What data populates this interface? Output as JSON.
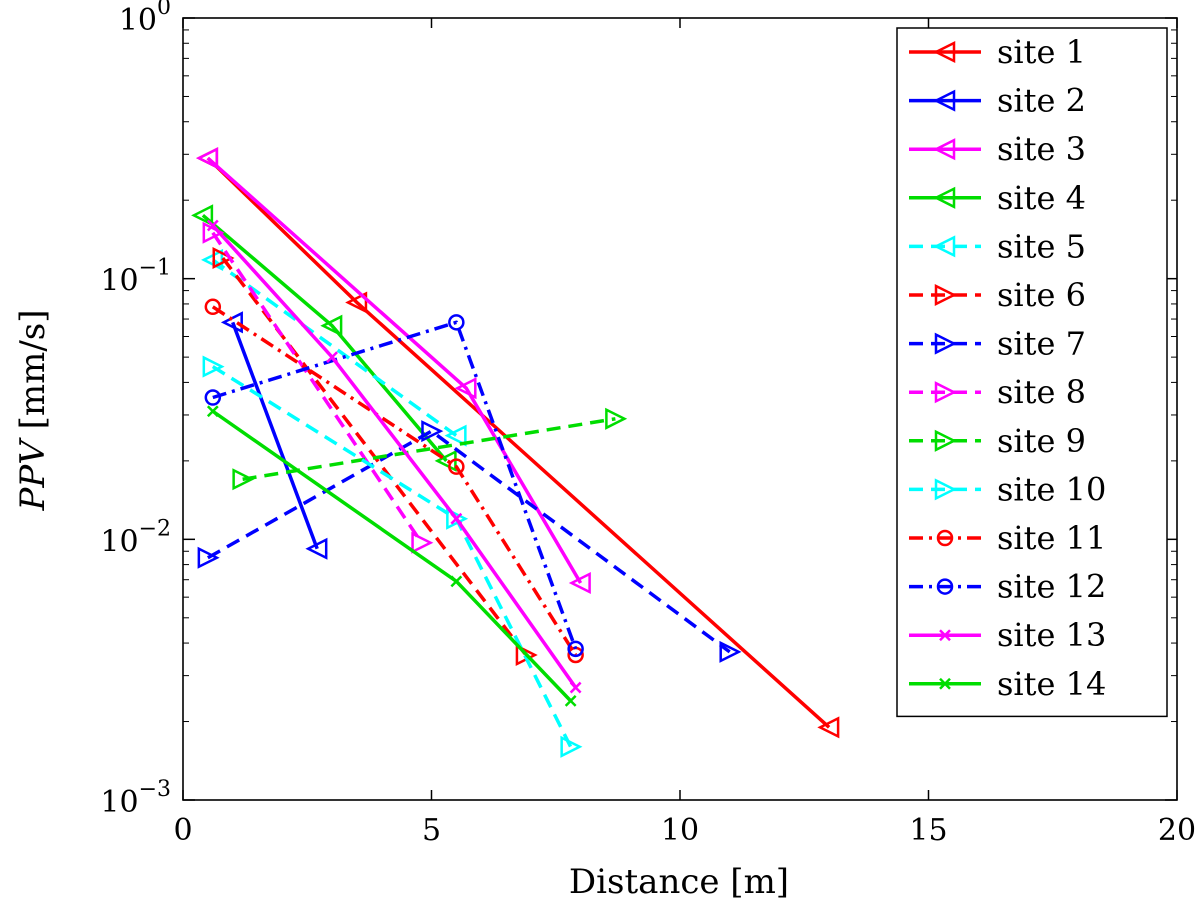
{
  "chart_data": {
    "type": "line",
    "title": "",
    "xlabel": "Distance [m]",
    "ylabel_var": "PPV",
    "ylabel_unit": " [mm/s]",
    "xlim": [
      0,
      20
    ],
    "ylim": [
      0.001,
      1
    ],
    "yscale": "log",
    "x_ticks": [
      "0",
      "5",
      "10",
      "15",
      "20"
    ],
    "y_ticks": [
      {
        "base": "10",
        "exp": "−3"
      },
      {
        "base": "10",
        "exp": "−2"
      },
      {
        "base": "10",
        "exp": "−1"
      },
      {
        "base": "10",
        "exp": "0"
      }
    ],
    "grid": false,
    "legend_position": "top-right",
    "series": [
      {
        "name": "site 1",
        "color": "#ff0000",
        "style": "solid",
        "marker": "triangle-left",
        "x": [
          0.5,
          3.5,
          13.0
        ],
        "y": [
          0.29,
          0.081,
          0.0019
        ]
      },
      {
        "name": "site 2",
        "color": "#0000ff",
        "style": "solid",
        "marker": "triangle-left",
        "x": [
          1.0,
          2.7
        ],
        "y": [
          0.068,
          0.0092
        ]
      },
      {
        "name": "site 3",
        "color": "#ff00ff",
        "style": "solid",
        "marker": "triangle-left",
        "x": [
          0.5,
          5.7,
          8.0
        ],
        "y": [
          0.29,
          0.038,
          0.0068
        ]
      },
      {
        "name": "site 4",
        "color": "#00dd00",
        "style": "solid",
        "marker": "triangle-left",
        "x": [
          0.4,
          3.0,
          5.3
        ],
        "y": [
          0.175,
          0.066,
          0.02
        ]
      },
      {
        "name": "site 5",
        "color": "#00ffff",
        "style": "dashed",
        "marker": "triangle-left",
        "x": [
          0.6,
          5.5
        ],
        "y": [
          0.118,
          0.025
        ]
      },
      {
        "name": "site 6",
        "color": "#ff0000",
        "style": "dashed",
        "marker": "triangle-right",
        "x": [
          0.8,
          6.9
        ],
        "y": [
          0.12,
          0.0036
        ]
      },
      {
        "name": "site 7",
        "color": "#0000ff",
        "style": "dashed",
        "marker": "triangle-right",
        "x": [
          0.5,
          5.0,
          11.0
        ],
        "y": [
          0.0085,
          0.026,
          0.0037
        ]
      },
      {
        "name": "site 8",
        "color": "#ff00ff",
        "style": "dashed",
        "marker": "triangle-right",
        "x": [
          0.6,
          4.8
        ],
        "y": [
          0.15,
          0.0097
        ]
      },
      {
        "name": "site 9",
        "color": "#00dd00",
        "style": "dashed",
        "marker": "triangle-right",
        "x": [
          1.2,
          8.7
        ],
        "y": [
          0.017,
          0.029
        ]
      },
      {
        "name": "site 10",
        "color": "#00ffff",
        "style": "dashed",
        "marker": "triangle-right",
        "x": [
          0.6,
          5.5,
          7.8
        ],
        "y": [
          0.046,
          0.012,
          0.0016
        ]
      },
      {
        "name": "site 11",
        "color": "#ff0000",
        "style": "dashdot",
        "marker": "circle",
        "x": [
          0.6,
          5.5,
          7.9
        ],
        "y": [
          0.078,
          0.019,
          0.0036
        ]
      },
      {
        "name": "site 12",
        "color": "#0000ff",
        "style": "dashdot",
        "marker": "circle",
        "x": [
          0.6,
          5.5,
          7.9
        ],
        "y": [
          0.035,
          0.068,
          0.0038
        ]
      },
      {
        "name": "site 13",
        "color": "#ff00ff",
        "style": "solid",
        "marker": "x",
        "x": [
          0.6,
          3.0,
          5.5,
          7.9
        ],
        "y": [
          0.16,
          0.05,
          0.012,
          0.0027
        ]
      },
      {
        "name": "site 14",
        "color": "#00dd00",
        "style": "solid",
        "marker": "x",
        "x": [
          0.6,
          5.5,
          7.8
        ],
        "y": [
          0.031,
          0.0069,
          0.0024
        ]
      }
    ]
  }
}
